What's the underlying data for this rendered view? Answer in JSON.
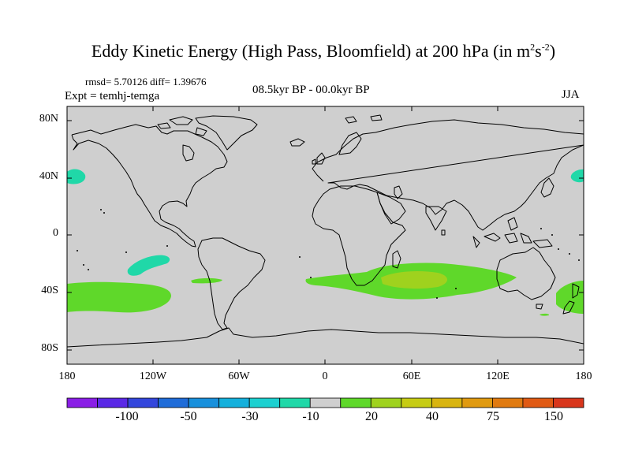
{
  "title_main": "Eddy Kinetic Energy (High Pass, Bloomfield) at 200 hPa (in m",
  "title_sup1": "2",
  "title_mid": "s",
  "title_sup2": "-2",
  "title_end": ")",
  "stats": "rmsd= 5.70126 diff= 1.39676",
  "experiment": "Expt = temhj-temga",
  "period": "08.5kyr BP - 00.0kyr BP",
  "season": "JJA",
  "map": {
    "projection": "cylindrical equidistant",
    "lon_range": [
      -180,
      180
    ],
    "lat_range": [
      -90,
      90
    ],
    "background_color": "#cfcfcf",
    "y_ticks": [
      "80N",
      "40N",
      "0",
      "40S",
      "80S"
    ],
    "x_ticks": [
      "180",
      "120W",
      "60W",
      "0",
      "60E",
      "120E",
      "180"
    ]
  },
  "colorbar": {
    "colors": [
      "#8a1ee6",
      "#5a28e6",
      "#3346dc",
      "#1f6cd8",
      "#1890dc",
      "#14b0dc",
      "#1cd0d0",
      "#20d8a8",
      "#cfcfcf",
      "#5fd82a",
      "#9fd21e",
      "#c6cc14",
      "#d8b410",
      "#e09a10",
      "#e07a10",
      "#e05a14",
      "#d8361c"
    ],
    "labels": [
      "-100",
      "-50",
      "-30",
      "-10",
      "20",
      "40",
      "75",
      "150"
    ]
  },
  "anomaly_regions": [
    {
      "name": "N Pacific west 40N",
      "level": "-10 to -20",
      "color": "#20d8a8"
    },
    {
      "name": "N Pacific east 40N",
      "level": "-10 to -20",
      "color": "#20d8a8"
    },
    {
      "name": "S Pacific 25S",
      "level": "-10 to -20",
      "color": "#20d8a8"
    },
    {
      "name": "S Pacific band 40S",
      "level": "10 to 20",
      "color": "#5fd82a"
    },
    {
      "name": "S Atlantic-Indian band 40S",
      "level": "10 to 20",
      "color": "#5fd82a"
    },
    {
      "name": "S Indian core 35S",
      "level": "20 to 30",
      "color": "#9fd21e"
    },
    {
      "name": "New Zealand 40S",
      "level": "10 to 20",
      "color": "#5fd82a"
    }
  ]
}
